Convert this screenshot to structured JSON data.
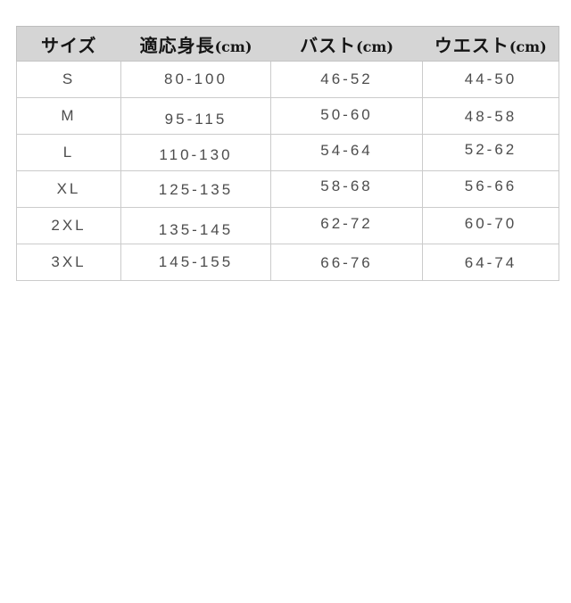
{
  "chart_data": {
    "type": "table",
    "title": "",
    "columns": [
      "サイズ",
      "適応身長(cm)",
      "バスト(cm)",
      "ウエスト(cm)"
    ],
    "header_parts": [
      {
        "label": "サイズ",
        "unit": ""
      },
      {
        "label": "適応身長",
        "unit": "(cm)"
      },
      {
        "label": "バスト",
        "unit": "(cm)"
      },
      {
        "label": "ウエスト",
        "unit": "(cm)"
      }
    ],
    "rows": [
      [
        "S",
        "80-100",
        "46-52",
        "44-50"
      ],
      [
        "M",
        "95-115",
        "50-60",
        "48-58"
      ],
      [
        "L",
        "110-130",
        "54-64",
        "52-62"
      ],
      [
        "XL",
        "125-135",
        "58-68",
        "56-66"
      ],
      [
        "2XL",
        "135-145",
        "62-72",
        "60-70"
      ],
      [
        "3XL",
        "145-155",
        "66-76",
        "64-74"
      ]
    ],
    "colors": {
      "header_bg": "#d5d5d5",
      "border": "#cbcbcb",
      "header_text": "#151515",
      "data_text": "#4d4d4d"
    }
  }
}
